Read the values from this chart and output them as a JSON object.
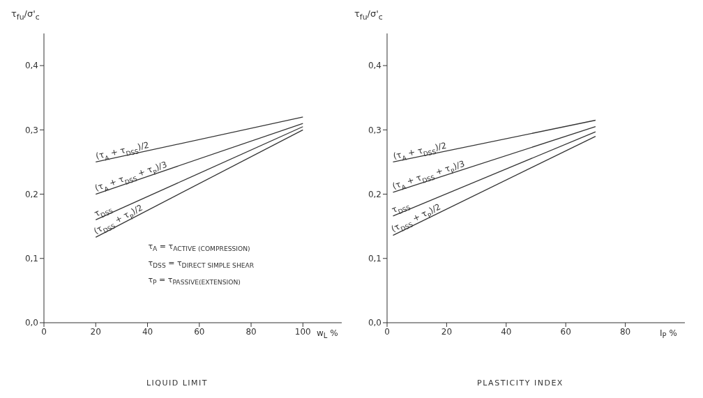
{
  "chart_data": [
    {
      "type": "line",
      "xlabel": "LIQUID LIMIT",
      "ylabel": "τ$_{fu}$/σ'$_{c}$",
      "xlim": [
        0,
        115
      ],
      "xticks": [
        0,
        20,
        40,
        60,
        80,
        100
      ],
      "ylim": [
        0,
        0.45
      ],
      "yticks": [
        {
          "value": 0,
          "label": "0,0"
        },
        {
          "value": 0.1,
          "label": "0,1"
        },
        {
          "value": 0.2,
          "label": "0,2"
        },
        {
          "value": 0.3,
          "label": "0,3"
        },
        {
          "value": 0.4,
          "label": "0,4"
        }
      ],
      "grid": false,
      "legend": false,
      "marker": "none",
      "line_style": "solid",
      "annotations": [
        "w$_{L}$ %",
        "τ$_{A}$ = τ$_{ACTIVE (COMPRESSION)}$",
        "τ$_{DSS}$ = τ$_{DIRECT SIMPLE SHEAR}$",
        "τ$_{P}$ = τ$_{PASSIVE(EXTENSION)}$"
      ],
      "series": [
        {
          "name": "(τ$_{A}$ + τ$_{DSS}$)/2",
          "color": "#333333",
          "x": [
            20,
            100
          ],
          "values": [
            0.25,
            0.32
          ]
        },
        {
          "name": "(τ$_{A}$ + τ$_{DSS}$ + τ$_{P}$)/3",
          "color": "#333333",
          "x": [
            20,
            100
          ],
          "values": [
            0.2,
            0.31
          ]
        },
        {
          "name": "τ$_{DSS}$",
          "color": "#333333",
          "x": [
            20,
            100
          ],
          "values": [
            0.16,
            0.305
          ]
        },
        {
          "name": "(τ$_{DSS}$ + τ$_{P}$)/2",
          "color": "#333333",
          "x": [
            20,
            100
          ],
          "values": [
            0.133,
            0.3
          ]
        }
      ]
    },
    {
      "type": "line",
      "xlabel": "PLASTICITY INDEX",
      "ylabel": "τ$_{fu}$/σ'$_{c}$",
      "xlim": [
        0,
        100
      ],
      "xticks": [
        0,
        20,
        40,
        60,
        80
      ],
      "ylim": [
        0,
        0.45
      ],
      "yticks": [
        {
          "value": 0,
          "label": "0,0"
        },
        {
          "value": 0.1,
          "label": "0,1"
        },
        {
          "value": 0.2,
          "label": "0,2"
        },
        {
          "value": 0.3,
          "label": "0,3"
        },
        {
          "value": 0.4,
          "label": "0,4"
        }
      ],
      "grid": false,
      "legend": false,
      "marker": "none",
      "line_style": "solid",
      "annotations": [
        "I$_{P}$ %"
      ],
      "series": [
        {
          "name": "(τ$_{A}$ + τ$_{DSS}$)/2",
          "color": "#333333",
          "x": [
            2,
            70
          ],
          "values": [
            0.25,
            0.315
          ]
        },
        {
          "name": "(τ$_{A}$ + τ$_{DSS}$ + τ$_{P}$)/3",
          "color": "#333333",
          "x": [
            2,
            70
          ],
          "values": [
            0.203,
            0.305
          ]
        },
        {
          "name": "τ$_{DSS}$",
          "color": "#333333",
          "x": [
            2,
            70
          ],
          "values": [
            0.166,
            0.297
          ]
        },
        {
          "name": "(τ$_{DSS}$ + τ$_{P}$)/2",
          "color": "#333333",
          "x": [
            2,
            70
          ],
          "values": [
            0.136,
            0.29
          ]
        }
      ]
    }
  ]
}
